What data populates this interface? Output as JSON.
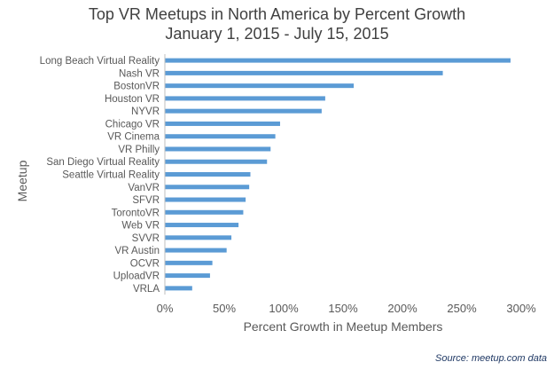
{
  "chart_data": {
    "type": "bar",
    "orientation": "horizontal",
    "title": "Top VR Meetups in North America by Percent Growth",
    "subtitle": "January 1, 2015 - July 15, 2015",
    "xlabel": "Percent Growth in Meetup Members",
    "ylabel": "Meetup",
    "xlim": [
      0,
      300
    ],
    "xticks": [
      "0%",
      "50%",
      "100%",
      "150%",
      "200%",
      "250%",
      "300%"
    ],
    "bar_color": "#5b9bd5",
    "categories": [
      "Long Beach Virtual Reality",
      "Nash VR",
      "BostonVR",
      "Houston VR",
      "NYVR",
      "Chicago VR",
      "VR Cinema",
      "VR Philly",
      "San Diego Virtual Reality",
      "Seattle Virtual Reality",
      "VanVR",
      "SFVR",
      "TorontoVR",
      "Web VR",
      "SVVR",
      "VR Austin",
      "OCVR",
      "UploadVR",
      "VRLA"
    ],
    "values": [
      291,
      234,
      159,
      135,
      132,
      97,
      93,
      89,
      86,
      72,
      71,
      68,
      66,
      62,
      56,
      52,
      40,
      38,
      23
    ],
    "source": "Source: meetup.com data"
  }
}
